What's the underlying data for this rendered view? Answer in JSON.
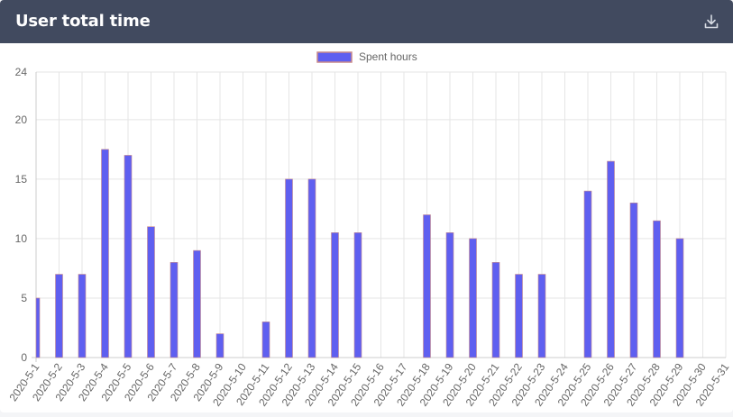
{
  "header": {
    "title": "User total time",
    "download_icon": "download-icon"
  },
  "colors": {
    "header_bg": "#414a5f",
    "bar_fill": "#5f5ff0",
    "bar_border": "#c98a8a",
    "grid": "#e5e5e5",
    "tick_text": "#666666"
  },
  "chart_data": {
    "type": "bar",
    "legend": {
      "position": "top",
      "entries": [
        "Spent hours"
      ]
    },
    "grid": true,
    "ylim": [
      0,
      24
    ],
    "yticks": [
      0,
      5,
      10,
      15,
      20,
      24
    ],
    "categories": [
      "2020-5-1",
      "2020-5-2",
      "2020-5-3",
      "2020-5-4",
      "2020-5-5",
      "2020-5-6",
      "2020-5-7",
      "2020-5-8",
      "2020-5-9",
      "2020-5-10",
      "2020-5-11",
      "2020-5-12",
      "2020-5-13",
      "2020-5-14",
      "2020-5-15",
      "2020-5-16",
      "2020-5-17",
      "2020-5-18",
      "2020-5-19",
      "2020-5-20",
      "2020-5-21",
      "2020-5-22",
      "2020-5-23",
      "2020-5-24",
      "2020-5-25",
      "2020-5-26",
      "2020-5-27",
      "2020-5-28",
      "2020-5-29",
      "2020-5-30",
      "2020-5-31"
    ],
    "series": [
      {
        "name": "Spent hours",
        "values": [
          5,
          7,
          7,
          17.5,
          17,
          11,
          8,
          9,
          2,
          0,
          3,
          15,
          15,
          10.5,
          10.5,
          0,
          0,
          12,
          10.5,
          10,
          8,
          7,
          7,
          0,
          14,
          16.5,
          13,
          11.5,
          10,
          0,
          0
        ]
      }
    ]
  }
}
